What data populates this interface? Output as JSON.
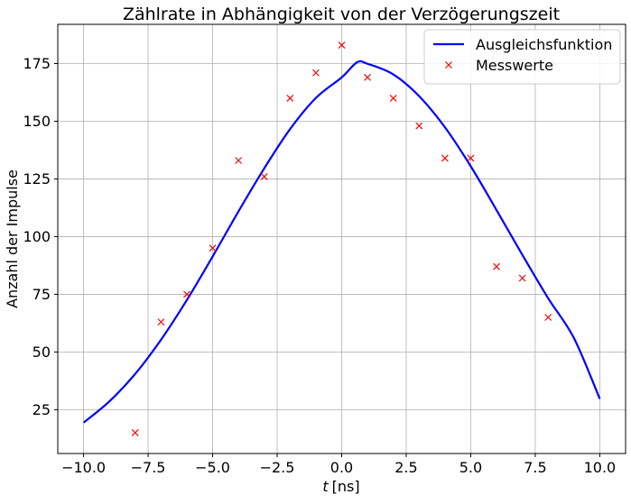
{
  "chart_data": {
    "type": "line",
    "title": "Zählrate in Abhängigkeit von der Verzögerungszeit",
    "xlabel_symbol": "t",
    "xlabel_unit": "[ns]",
    "ylabel": "Anzahl der Impulse",
    "xlim": [
      -11,
      11
    ],
    "ylim": [
      6,
      192
    ],
    "xticks": [
      -10,
      -7.5,
      -5,
      -2.5,
      0,
      2.5,
      5,
      7.5,
      10
    ],
    "xtick_labels": [
      "−10.0",
      "−7.5",
      "−5.0",
      "−2.5",
      "0.0",
      "2.5",
      "5.0",
      "7.5",
      "10.0"
    ],
    "yticks": [
      25,
      50,
      75,
      100,
      125,
      150,
      175
    ],
    "ytick_labels": [
      "25",
      "50",
      "75",
      "100",
      "125",
      "150",
      "175"
    ],
    "grid": true,
    "legend_position": "top-right",
    "series": [
      {
        "name": "Ausgleichsfunktion",
        "kind": "line",
        "color": "#0000ff",
        "x": [
          -10,
          -9,
          -8,
          -7,
          -6,
          -5,
          -4,
          -3,
          -2,
          -1,
          0,
          0.6,
          1,
          2,
          3,
          4,
          5,
          6,
          7,
          8,
          9,
          10
        ],
        "y": [
          19.4,
          28.6,
          40.5,
          55.3,
          72.5,
          91.4,
          110.9,
          129.6,
          146.6,
          160.1,
          169.0,
          175.6,
          174.9,
          170.3,
          160.9,
          147.4,
          130.5,
          111.5,
          92.1,
          73.3,
          56.0,
          29.7
        ]
      },
      {
        "name": "Messwerte",
        "kind": "scatter",
        "marker": "x",
        "color": "#ff0000",
        "x": [
          -8,
          -7,
          -6,
          -5,
          -4,
          -3,
          -2,
          -1,
          0,
          1,
          2,
          3,
          4,
          5,
          6,
          7,
          8
        ],
        "y": [
          15,
          63,
          75,
          95,
          133,
          126,
          160,
          171,
          183,
          169,
          160,
          148,
          134,
          134,
          87,
          82,
          65
        ]
      }
    ]
  }
}
